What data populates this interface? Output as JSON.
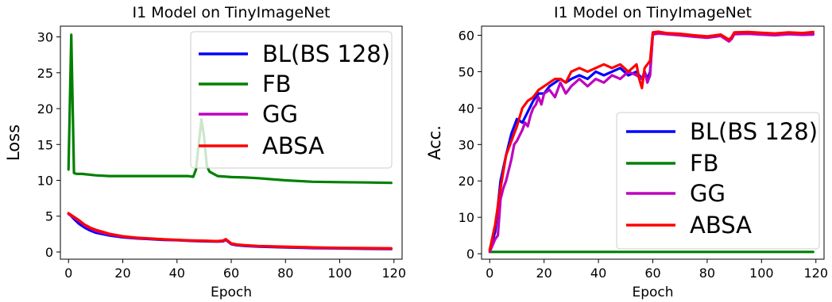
{
  "colors": {
    "BL(BS 128)": "#0000ff",
    "FB": "#008000",
    "GG": "#bf00bf",
    "ABSA": "#ff0000"
  },
  "chart_data": [
    {
      "type": "line",
      "title": "I1 Model on TinyImageNet",
      "xlabel": "Epoch",
      "ylabel": "Loss",
      "xlim": [
        -3,
        123
      ],
      "ylim": [
        -1,
        31.5
      ],
      "xticks": [
        0,
        20,
        40,
        60,
        80,
        100,
        120
      ],
      "yticks": [
        0,
        5,
        10,
        15,
        20,
        25,
        30
      ],
      "legend_position": "top-right",
      "grid": false,
      "series": [
        {
          "name": "BL(BS 128)",
          "x": [
            0,
            2,
            4,
            6,
            8,
            10,
            15,
            20,
            25,
            30,
            35,
            40,
            45,
            50,
            55,
            57,
            58,
            60,
            62,
            65,
            70,
            80,
            90,
            100,
            110,
            119
          ],
          "y": [
            5.4,
            4.6,
            3.9,
            3.4,
            3.0,
            2.7,
            2.3,
            2.05,
            1.9,
            1.8,
            1.7,
            1.65,
            1.55,
            1.5,
            1.45,
            1.5,
            1.7,
            1.1,
            0.95,
            0.85,
            0.75,
            0.65,
            0.55,
            0.5,
            0.45,
            0.42
          ]
        },
        {
          "name": "FB",
          "x": [
            0,
            1,
            2,
            3,
            5,
            10,
            15,
            20,
            30,
            40,
            44,
            46,
            47,
            48,
            49,
            50,
            51,
            52,
            53,
            55,
            60,
            65,
            70,
            80,
            90,
            100,
            110,
            119
          ],
          "y": [
            11.5,
            30.3,
            11.0,
            10.9,
            10.9,
            10.7,
            10.6,
            10.6,
            10.6,
            10.6,
            10.6,
            10.5,
            11.5,
            15.0,
            18.5,
            16.0,
            12.0,
            11.2,
            11.0,
            10.6,
            10.45,
            10.4,
            10.3,
            10.0,
            9.8,
            9.75,
            9.7,
            9.65
          ]
        },
        {
          "name": "GG",
          "x": [
            0,
            2,
            4,
            6,
            8,
            10,
            15,
            20,
            25,
            30,
            35,
            40,
            45,
            50,
            55,
            57,
            58,
            60,
            62,
            65,
            70,
            80,
            90,
            100,
            110,
            119
          ],
          "y": [
            5.3,
            4.8,
            4.3,
            3.7,
            3.3,
            2.95,
            2.45,
            2.15,
            1.95,
            1.85,
            1.75,
            1.68,
            1.6,
            1.55,
            1.5,
            1.55,
            1.75,
            1.15,
            1.0,
            0.9,
            0.8,
            0.7,
            0.6,
            0.55,
            0.5,
            0.48
          ]
        },
        {
          "name": "ABSA",
          "x": [
            0,
            2,
            4,
            6,
            8,
            10,
            15,
            20,
            25,
            30,
            35,
            40,
            45,
            50,
            55,
            57,
            58,
            60,
            62,
            65,
            70,
            80,
            90,
            100,
            110,
            119
          ],
          "y": [
            5.4,
            4.9,
            4.4,
            3.8,
            3.4,
            3.1,
            2.55,
            2.2,
            2.0,
            1.9,
            1.78,
            1.7,
            1.62,
            1.58,
            1.52,
            1.6,
            1.8,
            1.2,
            1.05,
            0.95,
            0.85,
            0.75,
            0.65,
            0.58,
            0.55,
            0.52
          ]
        }
      ]
    },
    {
      "type": "line",
      "title": "I1 Model on TinyImageNet",
      "xlabel": "Epoch",
      "ylabel": "Acc.",
      "xlim": [
        -3,
        123
      ],
      "ylim": [
        -1.5,
        62.5
      ],
      "xticks": [
        0,
        20,
        40,
        60,
        80,
        100,
        120
      ],
      "yticks": [
        0,
        10,
        20,
        30,
        40,
        50,
        60
      ],
      "legend_position": "lower-right",
      "grid": false,
      "series": [
        {
          "name": "BL(BS 128)",
          "x": [
            0,
            2,
            4,
            6,
            8,
            10,
            12,
            14,
            16,
            18,
            20,
            22,
            24,
            26,
            28,
            30,
            33,
            36,
            39,
            42,
            45,
            48,
            51,
            54,
            56,
            57,
            58,
            59,
            60,
            62,
            65,
            70,
            75,
            80,
            85,
            88,
            89,
            90,
            95,
            100,
            105,
            110,
            115,
            119
          ],
          "y": [
            1,
            6,
            20,
            27,
            33,
            37,
            36,
            39,
            42,
            44,
            44,
            46,
            47,
            48,
            47,
            48,
            49,
            48,
            50,
            49,
            50,
            51,
            49,
            50,
            48,
            50,
            48,
            50,
            60.5,
            60.8,
            60.5,
            60.2,
            59.8,
            59.5,
            60.0,
            58.5,
            59.0,
            60.5,
            60.6,
            60.4,
            60.2,
            60.5,
            60.2,
            60.4
          ]
        },
        {
          "name": "FB",
          "x": [
            0,
            119
          ],
          "y": [
            0.5,
            0.5
          ]
        },
        {
          "name": "GG",
          "x": [
            0,
            2,
            3,
            4,
            5,
            6,
            8,
            9,
            10,
            12,
            13,
            14,
            15,
            16,
            17,
            18,
            19,
            20,
            22,
            24,
            26,
            28,
            30,
            33,
            36,
            39,
            42,
            45,
            48,
            51,
            54,
            56,
            57,
            58,
            59,
            60,
            62,
            65,
            70,
            75,
            80,
            85,
            88,
            89,
            90,
            95,
            100,
            105,
            110,
            115,
            119
          ],
          "y": [
            0.5,
            4,
            5,
            15,
            18,
            20,
            26,
            30,
            31,
            34,
            36,
            35,
            38,
            40,
            41,
            43,
            41,
            44,
            45,
            43,
            47,
            44,
            46,
            48,
            46,
            48,
            47,
            49,
            48,
            50,
            49,
            48,
            50,
            47,
            49,
            60.2,
            60.5,
            60.3,
            60.0,
            59.6,
            59.3,
            59.8,
            58.3,
            59.0,
            60.3,
            60.4,
            60.2,
            60.0,
            60.3,
            60.1,
            60.2
          ]
        },
        {
          "name": "ABSA",
          "x": [
            0,
            2,
            4,
            6,
            8,
            10,
            12,
            14,
            16,
            18,
            20,
            22,
            24,
            26,
            28,
            30,
            33,
            36,
            39,
            42,
            45,
            48,
            51,
            54,
            55,
            56,
            57,
            58,
            59,
            60,
            62,
            65,
            70,
            75,
            80,
            85,
            88,
            89,
            90,
            95,
            100,
            105,
            110,
            115,
            119
          ],
          "y": [
            1,
            8,
            18,
            27,
            31,
            35,
            40,
            42,
            43,
            45,
            46,
            47,
            48,
            48,
            47,
            50,
            51,
            50,
            51,
            52,
            51,
            52,
            50,
            52,
            48,
            45.5,
            51,
            52,
            53,
            60.8,
            61.0,
            60.6,
            60.4,
            60.0,
            59.7,
            60.2,
            58.8,
            59.5,
            60.8,
            60.9,
            60.7,
            60.5,
            60.8,
            60.6,
            60.9
          ]
        }
      ]
    }
  ]
}
